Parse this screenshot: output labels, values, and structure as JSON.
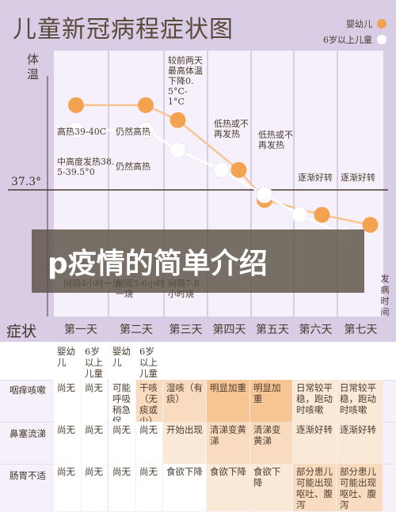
{
  "title": "儿童新冠病程症状图",
  "legend": [
    {
      "label": "婴幼儿",
      "color": "#f3a250"
    },
    {
      "label": "6岁以上儿童",
      "color": "#ffffff"
    }
  ],
  "ylabel": "体温",
  "baseline_label": "37.3°",
  "xlabel": "发病时间",
  "banner": "p疫情的简单介绍",
  "colors": {
    "infant": "#f3a250",
    "child": "#ffffff",
    "top_bg": "#d9cde6",
    "line": "#4a3b30",
    "panel": "#f5f0fa"
  },
  "chart_data": {
    "type": "line",
    "title": "儿童新冠病程症状图",
    "xlabel": "发病时间",
    "ylabel": "体温",
    "categories": [
      "第一天",
      "第二天",
      "第三天",
      "第四天",
      "第五天",
      "第六天",
      "第七天"
    ],
    "reference_line": "37.3°",
    "series": [
      {
        "name": "婴幼儿",
        "color": "#f3a250",
        "points": [
          [
            0.5,
            39.0
          ],
          [
            1.5,
            39.0
          ],
          [
            2.5,
            38.7
          ],
          [
            3.5,
            37.7
          ],
          [
            4.5,
            37.1
          ],
          [
            5.5,
            36.8
          ],
          [
            6.5,
            36.6
          ]
        ]
      },
      {
        "name": "6岁以上儿童",
        "color": "#ffffff",
        "points": [
          [
            0.5,
            38.5
          ],
          [
            1.5,
            38.5
          ],
          [
            2.5,
            38.1
          ],
          [
            3.5,
            37.7
          ],
          [
            4.5,
            37.2
          ],
          [
            5.5,
            36.8
          ],
          [
            6.5,
            36.4
          ]
        ]
      }
    ],
    "annotations": [
      {
        "col": 0,
        "text": "高热39-40C"
      },
      {
        "col": 0,
        "text": "中高度发热38.5-39.5°0"
      },
      {
        "col": 0,
        "text": "间隔4小时一烧"
      },
      {
        "col": 1,
        "text": "仍然高热"
      },
      {
        "col": 1,
        "text": "仍然高热"
      },
      {
        "col": 1,
        "text": "间隔5-6小时一烧"
      },
      {
        "col": 2,
        "text": "较前两天最高体温下降0.5°C-1°C"
      },
      {
        "col": 2,
        "text": "间隔7-8小时烧"
      },
      {
        "col": 3,
        "text": "低热或不再发热"
      },
      {
        "col": 4,
        "text": "低热或不再发热"
      },
      {
        "col": 5,
        "text": "逐渐好转"
      },
      {
        "col": 6,
        "text": "逐渐好转"
      }
    ]
  },
  "table": {
    "title": "症状",
    "days": [
      "第一天",
      "第二天",
      "第三天",
      "第四天",
      "第五天",
      "第六天",
      "第七天"
    ],
    "subheaders": [
      "婴幼儿",
      "6岁以上儿童",
      "婴幼儿",
      "6岁以上儿童"
    ],
    "rows": [
      {
        "label": "咽痒咳嗽",
        "cells": [
          "尚无",
          "尚无",
          "可能呼吸稍急促",
          "干咳（无痰或少）",
          "湿咳（有痰）",
          "明显加重",
          "明显加重",
          "日常较平稳，跑动时咳嗽",
          "日常较平稳，跑动时咳嗽"
        ]
      },
      {
        "label": "鼻塞流涕",
        "cells": [
          "尚无",
          "尚无",
          "尚无",
          "尚无",
          "开始出现",
          "清涕变黄涕",
          "清涕变黄涕",
          "逐渐好转",
          "逐渐好转"
        ]
      },
      {
        "label": "肠胃不适",
        "cells": [
          "尚无",
          "尚无",
          "尚无",
          "尚无",
          "食欲下降",
          "食欲下降",
          "食欲下降",
          "部分患儿可能出现呕吐、腹泻",
          "部分患儿可能出现呕吐、腹泻"
        ]
      }
    ]
  }
}
